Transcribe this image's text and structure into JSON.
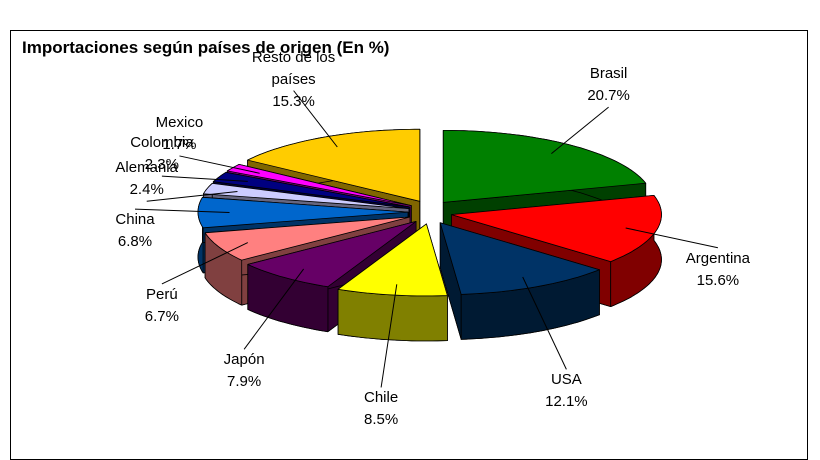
{
  "chart_data": {
    "type": "pie",
    "title": "Importaciones según países de origen (En %)",
    "categories": [
      "Brasil",
      "Argentina",
      "USA",
      "Chile",
      "Japón",
      "Perú",
      "China",
      "Alemania",
      "Colombia",
      "Mexico",
      "Resto de los países"
    ],
    "values": [
      20.7,
      15.6,
      12.1,
      8.5,
      7.9,
      6.7,
      6.8,
      2.4,
      2.3,
      1.7,
      15.3
    ],
    "value_labels": [
      "20.7%",
      "15.6%",
      "12.1%",
      "8.5%",
      "7.9%",
      "6.7%",
      "6.8%",
      "2.4%",
      "2.3%",
      "1.7%",
      "15.3%"
    ],
    "colors": [
      "#008000",
      "#ff0000",
      "#003366",
      "#ffff00",
      "#660066",
      "#ff8080",
      "#0066cc",
      "#ccccff",
      "#000080",
      "#ff00ff",
      "#ffcc00"
    ]
  }
}
